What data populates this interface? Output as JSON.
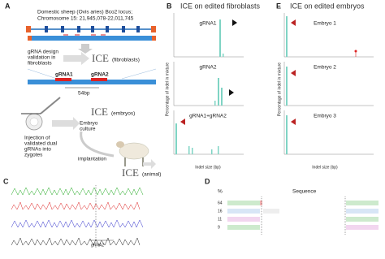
{
  "panel_a": {
    "label": "A",
    "locus_lines": [
      "Domestic sheep (Ovis aries) Bco2 locus;",
      "Chromosome 15: 21,945,078-22,011,745"
    ],
    "validation_lines": [
      "gRNA design",
      "validation in",
      "fibroblasts"
    ],
    "ice_fibroblasts": "ICE",
    "ice_fibroblasts_note": "(fibroblasts)",
    "grna1": "gRNA1",
    "grna2": "gRNA2",
    "distance": "54bp",
    "ice_embryos": "ICE",
    "ice_embryos_note": "(embryos)",
    "culture_lines": [
      "Embryo",
      "culture"
    ],
    "injection_lines": [
      "Injection of",
      "validated dual",
      "gRNAs into",
      "zygotes"
    ],
    "implantation": "implantation",
    "ice_animal": "ICE",
    "ice_animal_note": "(animal)"
  },
  "panel_b": {
    "label": "B",
    "title": "ICE on edited fibroblasts",
    "y_axis_label": "Percentage of indel in mixture",
    "x_axis_label": "Indel size (bp)",
    "plots": [
      "gRNA1",
      "gRNA2",
      "gRNA1+gRNA2"
    ]
  },
  "panel_e": {
    "label": "E",
    "title": "ICE on edited embryos",
    "y_axis_label": "Percentage of indel in mixture",
    "x_axis_label": "Indel size (bp)",
    "plots": [
      "Embryo 1",
      "Embryo 2",
      "Embryo 3"
    ]
  },
  "panel_c": {
    "label": "C",
    "marker": "gRNA2"
  },
  "panel_d": {
    "label": "D",
    "percent_header": "%",
    "sequence_header": "Sequence",
    "percent_rows": [
      "64",
      "16",
      "11",
      "9"
    ]
  }
}
